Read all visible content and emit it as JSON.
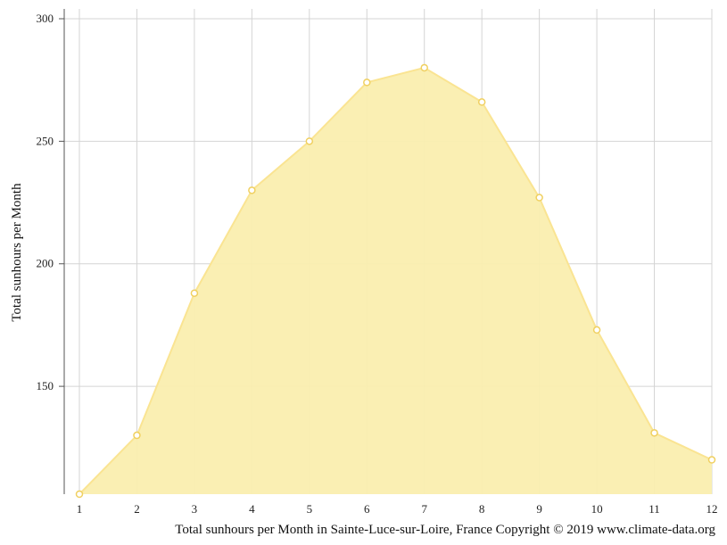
{
  "chart_data": {
    "type": "area",
    "x": [
      1,
      2,
      3,
      4,
      5,
      6,
      7,
      8,
      9,
      10,
      11,
      12
    ],
    "values": [
      106,
      130,
      188,
      230,
      250,
      274,
      280,
      266,
      227,
      173,
      131,
      120
    ],
    "ylabel": "Total sunhours per Month",
    "xlabel": "",
    "caption": "Total sunhours per Month in Sainte-Luce-sur-Loire, France Copyright © 2019 www.climate-data.org",
    "ylim": [
      106,
      304
    ],
    "xlim": [
      1,
      12
    ],
    "yticks": [
      150,
      200,
      250,
      300
    ],
    "xticks": [
      1,
      2,
      3,
      4,
      5,
      6,
      7,
      8,
      9,
      10,
      11,
      12
    ],
    "grid": true,
    "colors": {
      "fill": "#faeeaf",
      "line": "#fae492",
      "marker_stroke": "#f0d060",
      "marker_fill": "#ffffff",
      "grid": "#d4d4d4",
      "axis": "#555555"
    }
  }
}
